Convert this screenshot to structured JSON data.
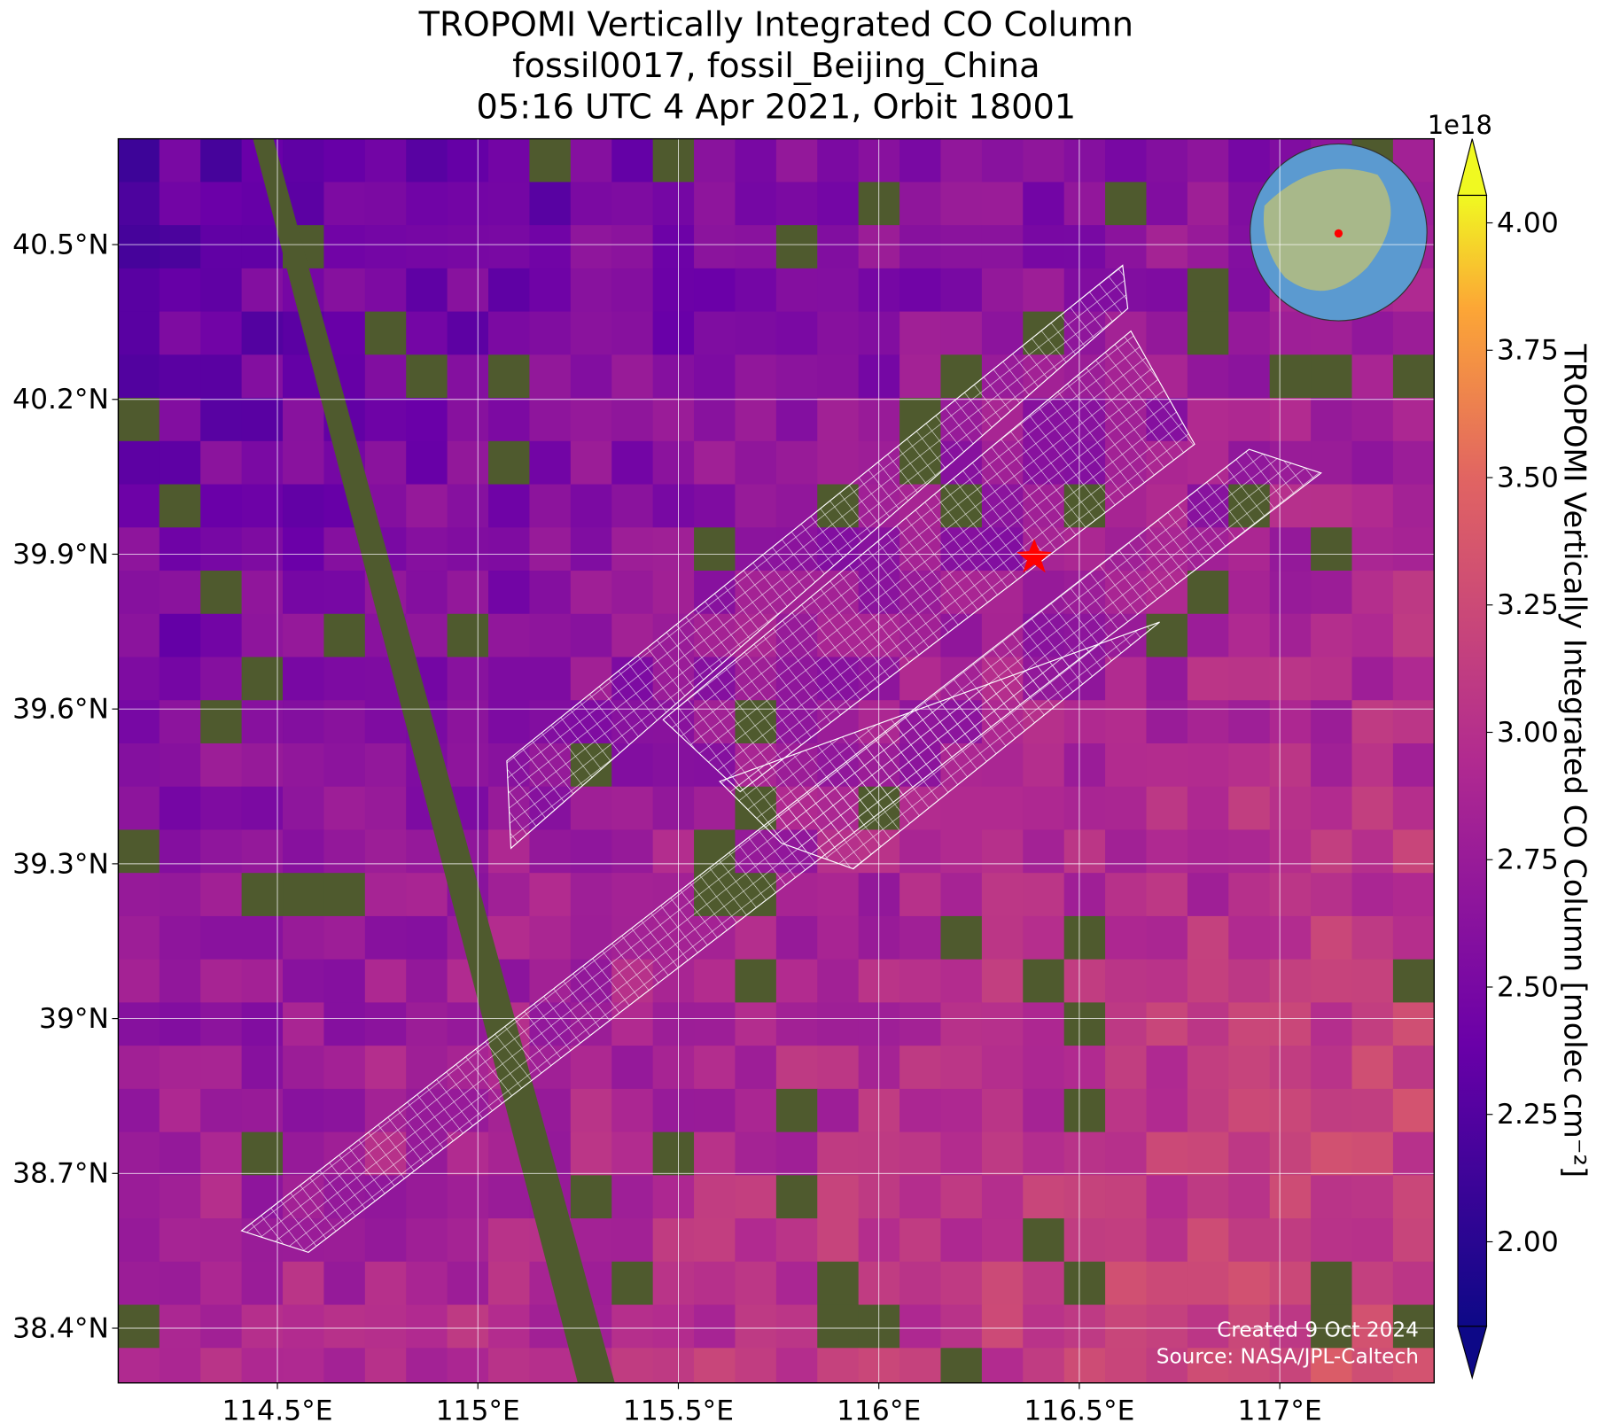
{
  "chart_data": {
    "type": "map",
    "title": [
      "TROPOMI Vertically Integrated CO Column",
      "fossil0017, fossil_Beijing_China",
      "05:16 UTC 4 Apr 2021, Orbit 18001"
    ],
    "xlim": [
      114.103,
      117.385
    ],
    "ylim": [
      38.294,
      40.705
    ],
    "xticks": [
      {
        "value": 114.5,
        "label": "114.5°E"
      },
      {
        "value": 115,
        "label": "115°E"
      },
      {
        "value": 115.5,
        "label": "115.5°E"
      },
      {
        "value": 116,
        "label": "116°E"
      },
      {
        "value": 116.5,
        "label": "116.5°E"
      },
      {
        "value": 117,
        "label": "117°E"
      }
    ],
    "yticks": [
      {
        "value": 40.5,
        "label": "40.5°N"
      },
      {
        "value": 40.2,
        "label": "40.2°N"
      },
      {
        "value": 39.9,
        "label": "39.9°N"
      },
      {
        "value": 39.6,
        "label": "39.6°N"
      },
      {
        "value": 39.3,
        "label": "39.3°N"
      },
      {
        "value": 39,
        "label": "39°N"
      },
      {
        "value": 38.7,
        "label": "38.7°N"
      },
      {
        "value": 38.4,
        "label": "38.4°N"
      }
    ],
    "grid": true,
    "colorbar": {
      "label": "TROPOMI Vertically Integrated CO Column [molec cm⁻²]",
      "offset_label": "1e18",
      "lim": [
        1.834,
        4.054
      ],
      "ticks": [
        {
          "value": 2,
          "label": "2.00"
        },
        {
          "value": 2.25,
          "label": "2.25"
        },
        {
          "value": 2.5,
          "label": "2.50"
        },
        {
          "value": 2.75,
          "label": "2.75"
        },
        {
          "value": 3,
          "label": "3.00"
        },
        {
          "value": 3.25,
          "label": "3.25"
        },
        {
          "value": 3.5,
          "label": "3.50"
        },
        {
          "value": 3.75,
          "label": "3.75"
        },
        {
          "value": 4,
          "label": "4.00"
        }
      ]
    },
    "annotations": [
      "Created 9 Oct 2024",
      "Source: NASA/JPL-Caltech"
    ]
  }
}
